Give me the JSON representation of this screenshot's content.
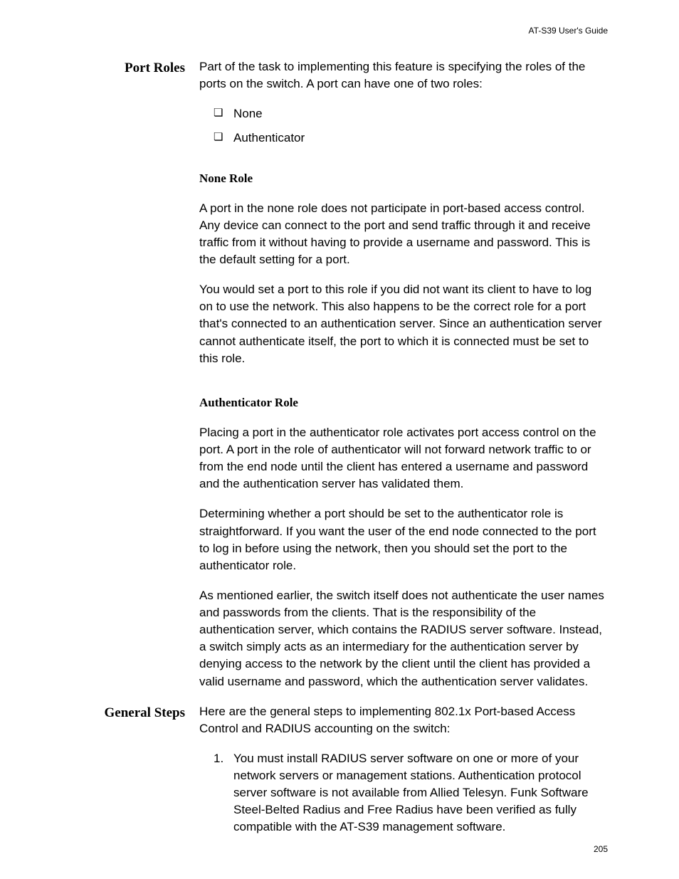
{
  "header": "AT-S39 User's Guide",
  "page_number": "205",
  "sections": [
    {
      "side_heading": "Port Roles",
      "intro": "Part of the task to implementing this feature is specifying the roles of the ports on the switch. A port can have one of two roles:",
      "bullets": [
        "None",
        "Authenticator"
      ],
      "subsections": [
        {
          "heading": "None Role",
          "paragraphs": [
            "A port in the none role does not participate in port-based access control. Any device can connect to the port and send traffic through it and receive traffic from it without having to provide a username and password. This is the default setting for a port.",
            "You would set a port to this role if you did not want its client to have to log on to use the network. This also happens to be the correct role for a port that's connected to an authentication server. Since an authentication server cannot authenticate itself, the port to which it is connected must be set to this role."
          ]
        },
        {
          "heading": "Authenticator Role",
          "paragraphs": [
            "Placing a port in the authenticator role activates port access control on the port. A port in the role of authenticator will not forward network traffic to or from the end node until the client has entered a username and password and the authentication server has validated them.",
            "Determining whether a port should be set to the authenticator role is straightforward. If you want the user of the end node connected to the port to log in before using the network, then you should set the port to the authenticator role.",
            "As mentioned earlier, the switch itself does not authenticate the user names and passwords from the clients. That is the responsibility of the authentication server, which contains the RADIUS server software. Instead, a switch simply acts as an intermediary for the authentication server by denying access to the network by the client until the client has provided a valid username and password, which the authentication server validates."
          ]
        }
      ]
    },
    {
      "side_heading": "General Steps",
      "intro": "Here are the general steps to implementing 802.1x Port-based Access Control and RADIUS accounting on the switch:",
      "ordered": [
        "You must install RADIUS server software on one or more of your network servers or management stations. Authentication protocol server software is not available from Allied Telesyn. Funk Software Steel-Belted Radius and Free Radius have been verified as fully compatible with the AT-S39 management software."
      ]
    }
  ]
}
